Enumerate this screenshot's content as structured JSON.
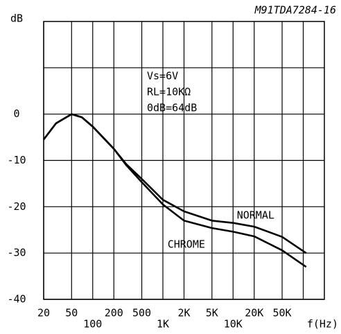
{
  "chart_data": {
    "type": "line",
    "title": "M91TDA7284-16",
    "y_label": "dB",
    "x_label": "f(Hz)",
    "annotations": [
      "Vs=6V",
      "RL=10KΩ",
      "0dB=64dB"
    ],
    "xscale": "log",
    "xlim": [
      20,
      200000
    ],
    "ylim": [
      -40,
      20
    ],
    "xticks": [
      20,
      50,
      100,
      200,
      500,
      {
        "value": 1000,
        "label": "1K"
      },
      {
        "value": 2000,
        "label": "2K"
      },
      {
        "value": 5000,
        "label": "5K"
      },
      {
        "value": 10000,
        "label": "10K"
      },
      {
        "value": 20000,
        "label": "20K"
      },
      {
        "value": 50000,
        "label": "50K"
      }
    ],
    "xgrid": [
      100000
    ],
    "yticks": [
      -40,
      -30,
      -20,
      -10,
      0
    ],
    "ygrid": [
      10
    ],
    "grid": true,
    "x": [
      20,
      30,
      50,
      70,
      100,
      200,
      300,
      500,
      1000,
      2000,
      5000,
      10000,
      20000,
      50000,
      110000
    ],
    "series": [
      {
        "name": "NORMAL",
        "color": "#000000",
        "values": [
          -5.5,
          -2,
          0,
          -0.7,
          -2.7,
          -7.5,
          -10.8,
          -14,
          -18.5,
          -21,
          -23,
          -23.5,
          -24.3,
          -26.5,
          -30
        ]
      },
      {
        "name": "CHROME",
        "color": "#000000",
        "values": [
          -5.5,
          -2,
          0,
          -0.7,
          -2.7,
          -7.5,
          -11,
          -14.7,
          -19.5,
          -23,
          -24.6,
          -25.4,
          -26.4,
          -29.4,
          -33
        ]
      }
    ]
  }
}
